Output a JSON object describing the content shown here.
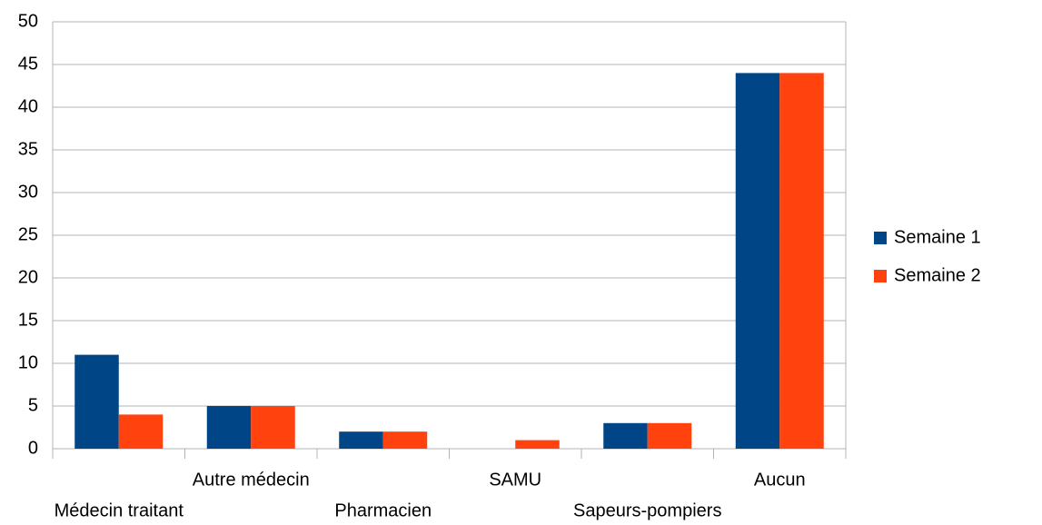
{
  "chart_data": {
    "type": "bar",
    "categories": [
      "Médecin traitant",
      "Autre médecin",
      "Pharmacien",
      "SAMU",
      "Sapeurs-pompiers",
      "Aucun"
    ],
    "series": [
      {
        "name": "Semaine 1",
        "color": "#004586",
        "values": [
          11,
          5,
          2,
          0,
          3,
          44
        ]
      },
      {
        "name": "Semaine 2",
        "color": "#ff420e",
        "values": [
          4,
          5,
          2,
          1,
          3,
          44
        ]
      }
    ],
    "ylim": [
      0,
      50
    ],
    "yticks": [
      0,
      5,
      10,
      15,
      20,
      25,
      30,
      35,
      40,
      45,
      50
    ],
    "grid": true,
    "legend": "right"
  }
}
